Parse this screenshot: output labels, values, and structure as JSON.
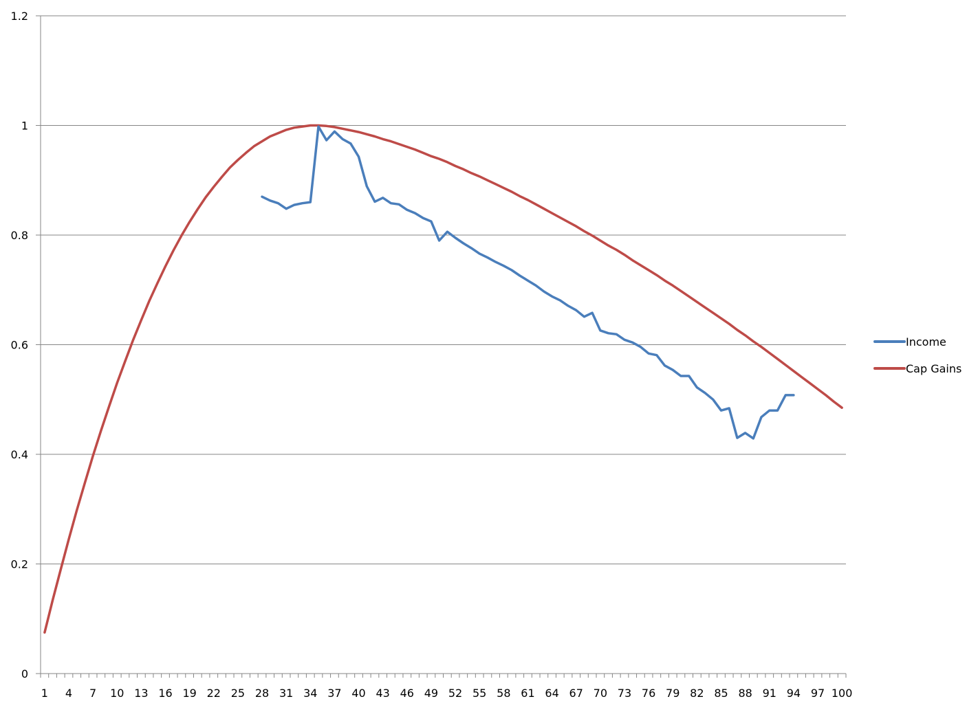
{
  "chart_data": {
    "type": "line",
    "title": "",
    "xlabel": "",
    "ylabel": "",
    "ylim": [
      0,
      1.2
    ],
    "yticks": [
      0,
      0.2,
      0.4,
      0.6,
      0.8,
      1,
      1.2
    ],
    "ytick_labels": [
      "0",
      "0.2",
      "0.4",
      "0.6",
      "0.8",
      "1",
      "1.2"
    ],
    "x_categories_count": 100,
    "xtick_labels": [
      "1",
      "4",
      "7",
      "10",
      "13",
      "16",
      "19",
      "22",
      "25",
      "28",
      "31",
      "34",
      "37",
      "40",
      "43",
      "46",
      "49",
      "52",
      "55",
      "58",
      "61",
      "64",
      "67",
      "70",
      "73",
      "76",
      "79",
      "82",
      "85",
      "88",
      "91",
      "94",
      "97",
      "100"
    ],
    "grid": "horizontal major",
    "legend_position": "right",
    "series": [
      {
        "name": "Income",
        "color": "#4A7EBB",
        "x_start": 28,
        "values": [
          0.87,
          0.863,
          0.858,
          0.848,
          0.855,
          0.858,
          0.86,
          0.998,
          0.973,
          0.989,
          0.975,
          0.967,
          0.943,
          0.889,
          0.861,
          0.868,
          0.858,
          0.856,
          0.846,
          0.84,
          0.831,
          0.825,
          0.79,
          0.806,
          0.795,
          0.785,
          0.776,
          0.766,
          0.759,
          0.751,
          0.744,
          0.736,
          0.726,
          0.717,
          0.708,
          0.697,
          0.688,
          0.681,
          0.671,
          0.663,
          0.651,
          0.658,
          0.626,
          0.621,
          0.619,
          0.609,
          0.604,
          0.596,
          0.584,
          0.581,
          0.562,
          0.554,
          0.543,
          0.543,
          0.522,
          0.512,
          0.5,
          0.48,
          0.484,
          0.43,
          0.439,
          0.429,
          0.468,
          0.48,
          0.48,
          0.508,
          0.508
        ]
      },
      {
        "name": "Cap Gains",
        "color": "#BE4B48",
        "x_start": 1,
        "formula_note": "smooth curve rising from ~0.075 at x=1 to peak 1.0 at x=35, declining to ~0.485 at x=100",
        "values": []
      }
    ]
  }
}
